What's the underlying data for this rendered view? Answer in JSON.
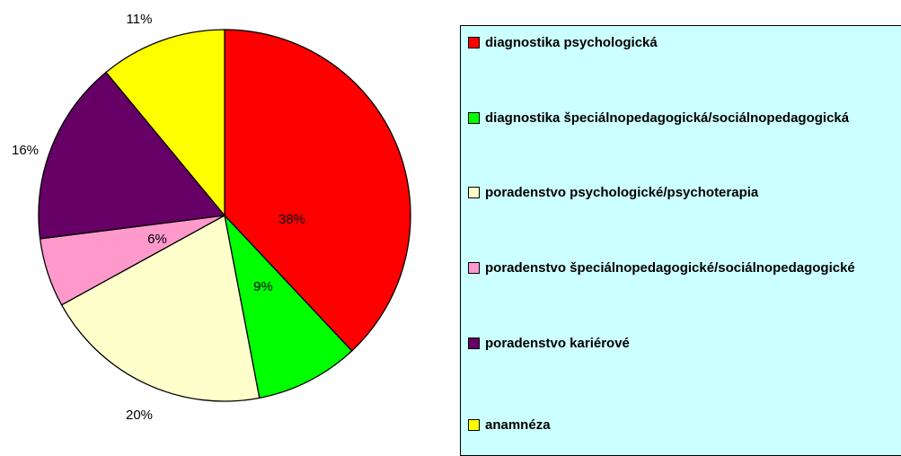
{
  "chart_data": {
    "type": "pie",
    "categories": [
      "diagnostika psychologická",
      "diagnostika špeciálnopedagogická/sociálnopedagogická",
      "poradenstvo psychologické/psychoterapia",
      "poradenstvo špeciálnopedagogické/sociálnopedagogické",
      "poradenstvo kariérové",
      "anamnéza"
    ],
    "values": [
      38,
      9,
      20,
      6,
      16,
      11
    ],
    "value_labels": [
      "38%",
      "9%",
      "20%",
      "6%",
      "16%",
      "11%"
    ],
    "colors": [
      "#ff0000",
      "#00ff00",
      "#ffffcc",
      "#ff99cc",
      "#660066",
      "#ffff00"
    ],
    "legend": "right"
  }
}
